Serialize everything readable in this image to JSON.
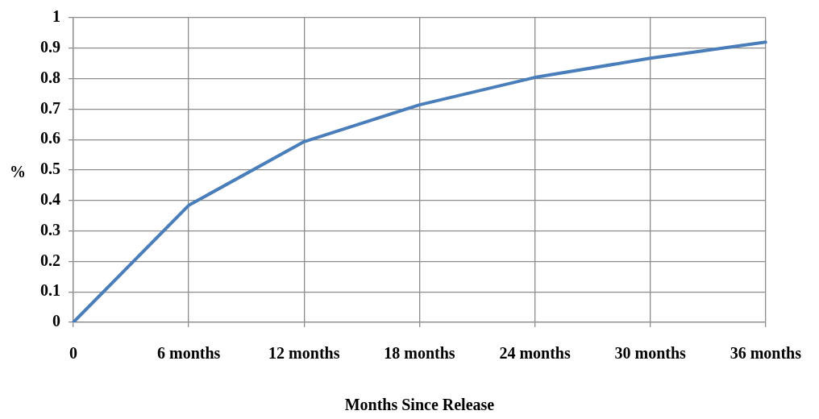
{
  "chart_data": {
    "type": "line",
    "xlabel": "Months Since Release",
    "ylabel": "%",
    "categories": [
      "0",
      "6 months",
      "12 months",
      "18 months",
      "24 months",
      "30 months",
      "36 months"
    ],
    "series": [
      {
        "color": "#4a7ebb",
        "values": [
          0,
          0.384,
          0.593,
          0.714,
          0.804,
          0.867,
          0.92
        ]
      }
    ],
    "ylim": [
      0,
      1
    ],
    "yticks": [
      0,
      0.1,
      0.2,
      0.3,
      0.4,
      0.5,
      0.6,
      0.7,
      0.8,
      0.9,
      1
    ],
    "grid": true,
    "legend": false,
    "marker": "none",
    "line_style": "solid"
  }
}
